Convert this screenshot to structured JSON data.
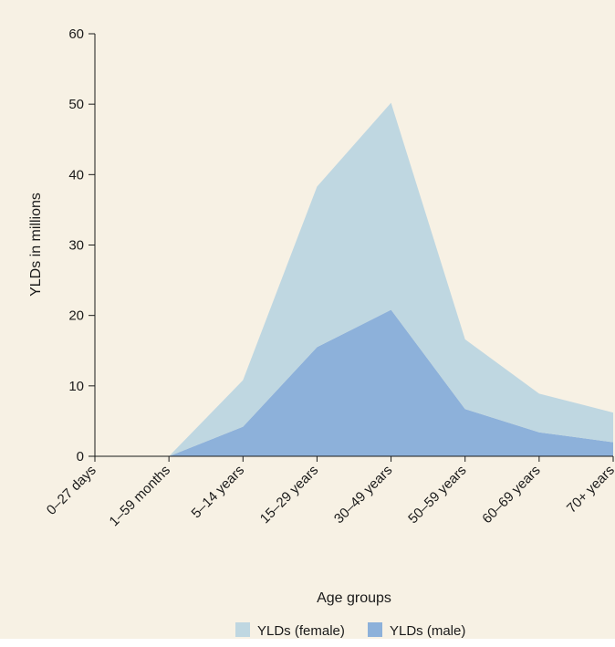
{
  "chart_data": {
    "type": "area",
    "stacked": true,
    "title": "",
    "xlabel": "Age groups",
    "ylabel": "YLDs in millions",
    "categories": [
      "0–27 days",
      "1–59 months",
      "5–14 years",
      "15–29 years",
      "30–49 years",
      "50–59 years",
      "60–69 years",
      "70+ years"
    ],
    "ylim": [
      0,
      60
    ],
    "yticks": [
      0,
      10,
      20,
      30,
      40,
      50,
      60
    ],
    "grid": false,
    "legend_position": "bottom",
    "series": [
      {
        "name": "YLDs (male)",
        "color": "#8db1da",
        "values": [
          0,
          0,
          4.2,
          15.5,
          20.8,
          6.7,
          3.4,
          2.0
        ]
      },
      {
        "name": "YLDs (female)",
        "color": "#bfd7e1",
        "values": [
          0,
          0,
          6.6,
          22.8,
          29.4,
          9.9,
          5.5,
          4.2
        ]
      }
    ],
    "legend": [
      {
        "label": "YLDs (female)",
        "color": "#bfd7e1"
      },
      {
        "label": "YLDs (male)",
        "color": "#8db1da"
      }
    ]
  },
  "colors": {
    "background": "#f7f1e4",
    "axis": "#1a1a1a"
  }
}
